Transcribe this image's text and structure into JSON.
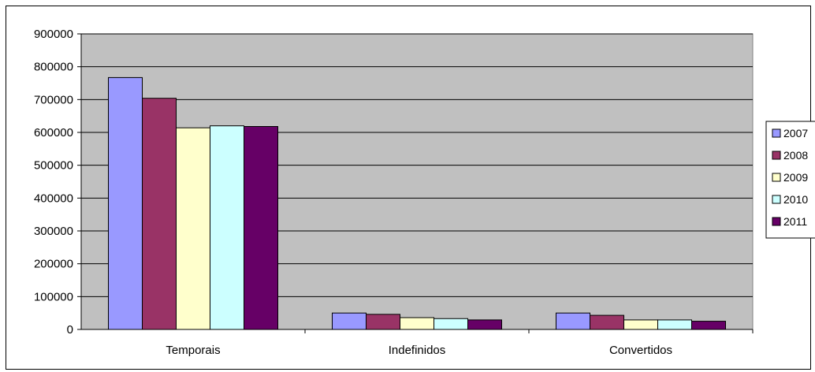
{
  "chart_data": {
    "type": "bar",
    "title": "",
    "xlabel": "",
    "ylabel": "",
    "categories": [
      "Temporais",
      "Indefinidos",
      "Convertidos"
    ],
    "series": [
      {
        "name": "2007",
        "color": "#9999FF",
        "values": [
          767000,
          50000,
          50000
        ]
      },
      {
        "name": "2008",
        "color": "#993366",
        "values": [
          704000,
          46000,
          43000
        ]
      },
      {
        "name": "2009",
        "color": "#FFFFCC",
        "values": [
          614000,
          36000,
          29000
        ]
      },
      {
        "name": "2010",
        "color": "#CCFFFF",
        "values": [
          620000,
          33000,
          29000
        ]
      },
      {
        "name": "2011",
        "color": "#660066",
        "values": [
          618000,
          29000,
          25000
        ]
      }
    ],
    "ylim": [
      0,
      900000
    ],
    "yticks": [
      "0",
      "100000",
      "200000",
      "300000",
      "400000",
      "500000",
      "600000",
      "700000",
      "800000",
      "900000"
    ],
    "grid": true,
    "plot_background": "#C0C0C0",
    "legend_position": "right"
  }
}
